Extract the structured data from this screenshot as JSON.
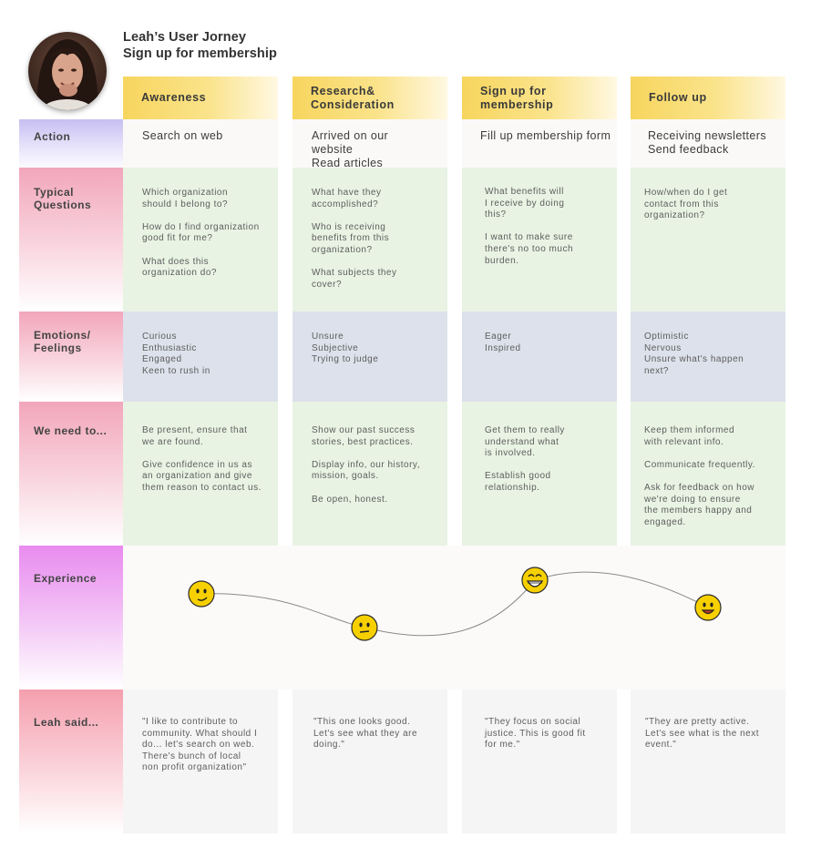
{
  "header": {
    "title_line1": "Leah’s User Jorney",
    "title_line2": "Sign up for membership"
  },
  "stages": [
    {
      "label": "Awareness"
    },
    {
      "label": "Research&\nConsideration"
    },
    {
      "label": "Sign up for\nmembership"
    },
    {
      "label": "Follow up"
    }
  ],
  "rows": {
    "action": {
      "label": "Action",
      "cells": [
        "Search on web",
        "Arrived on our website\nRead articles",
        "Fill up membership form",
        "Receiving newsletters\nSend feedback"
      ]
    },
    "questions": {
      "label": "Typical\nQuestions",
      "cells": [
        "Which organization\nshould I belong to?\n\nHow do I find organization\ngood fit for me?\n\nWhat does this\norganization do?",
        "What have they\naccomplished?\n\nWho is receiving\nbenefits from this\norganization?\n\nWhat subjects they\ncover?",
        "What benefits will\nI receive by doing\nthis?\n\nI want to make sure\nthere's no too much\nburden.",
        "How/when do I get\ncontact from this\norganization?"
      ]
    },
    "emotions": {
      "label": "Emotions/\nFeelings",
      "cells": [
        "Curious\nEnthusiastic\nEngaged\nKeen to rush in",
        "Unsure\nSubjective\nTrying to judge",
        "Eager\nInspired",
        "Optimistic\nNervous\nUnsure what's happen\nnext?"
      ]
    },
    "needs": {
      "label": "We need to...",
      "cells": [
        "Be present, ensure that\nwe are found.\n\nGive confidence in us as\nan organization and give\nthem reason to contact us.",
        "Show our past success\nstories, best practices.\n\nDisplay info, our history,\nmission, goals.\n\nBe open, honest.",
        "Get them to really\nunderstand what\nis involved.\n\nEstablish good\nrelationship.",
        "Keep them informed\nwith relevant info.\n\nCommunicate frequently.\n\nAsk for feedback on how\nwe're doing to ensure\nthe members happy and\nengaged."
      ]
    },
    "experience": {
      "label": "Experience",
      "points": [
        {
          "stage": "Awareness",
          "emotion": "content",
          "level": 0.55
        },
        {
          "stage": "Research& Consideration",
          "emotion": "neutral",
          "level": 0.2
        },
        {
          "stage": "Sign up for membership",
          "emotion": "very-happy",
          "level": 0.9
        },
        {
          "stage": "Follow up",
          "emotion": "happy",
          "level": 0.45
        }
      ]
    },
    "said": {
      "label": "Leah said...",
      "cells": [
        "\"I like to contribute to\ncommunity. What should I\ndo... let's search on web.\nThere's bunch of local\nnon profit organization\"",
        "\"This one looks good.\nLet's see what they are\ndoing.\"",
        "\"They focus on social\njustice. This is good fit\nfor me.\"",
        "\"They are pretty active.\nLet's see what is the next\nevent.\""
      ]
    }
  },
  "colors": {
    "stage_header": "#f7d55e",
    "label_action": "#c9c3f2",
    "label_pink": "#f2a8bd",
    "label_experience": "#e98cf0",
    "label_said": "#f5a0b0",
    "cell_green": "#e8f3e3",
    "cell_blue": "#dde1eb",
    "emoji": "#f7d000"
  }
}
